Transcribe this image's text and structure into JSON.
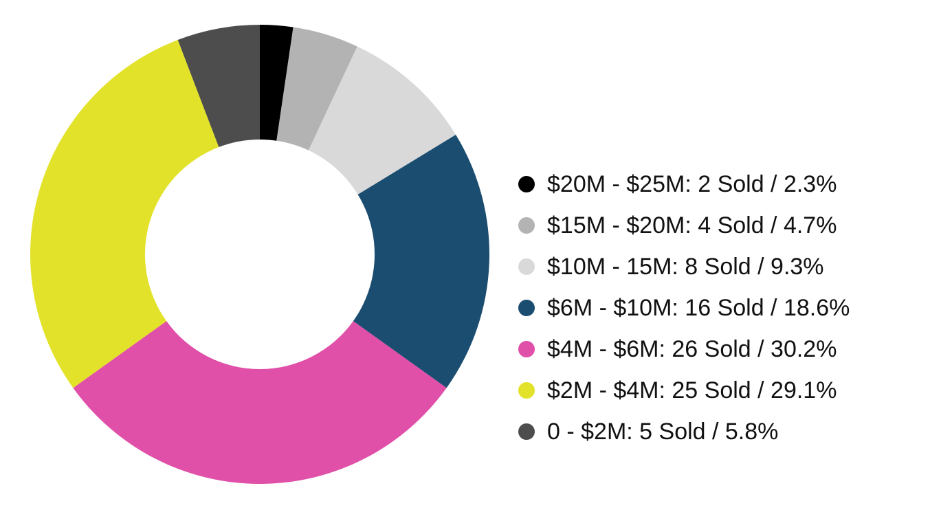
{
  "chart_data": {
    "type": "pie",
    "variant": "donut",
    "title": "",
    "slices": [
      {
        "label": "$20M - $25M: 2 Sold / 2.3%",
        "category": "$20M - $25M",
        "sold": 2,
        "percent": 2.3,
        "color": "#000000"
      },
      {
        "label": "$15M - $20M: 4 Sold / 4.7%",
        "category": "$15M - $20M",
        "sold": 4,
        "percent": 4.7,
        "color": "#b3b3b3"
      },
      {
        "label": "$10M - 15M: 8 Sold / 9.3%",
        "category": "$10M - 15M",
        "sold": 8,
        "percent": 9.3,
        "color": "#d9d9d9"
      },
      {
        "label": "$6M - $10M: 16 Sold / 18.6%",
        "category": "$6M - $10M",
        "sold": 16,
        "percent": 18.6,
        "color": "#1b4d70"
      },
      {
        "label": "$4M - $6M: 26 Sold / 30.2%",
        "category": "$4M - $6M",
        "sold": 26,
        "percent": 30.2,
        "color": "#e04fa8"
      },
      {
        "label": "$2M - $4M: 25 Sold / 29.1%",
        "category": "$2M - $4M",
        "sold": 25,
        "percent": 29.1,
        "color": "#e3e22a"
      },
      {
        "label": "0 - $2M: 5 Sold / 5.8%",
        "category": "0 - $2M",
        "sold": 5,
        "percent": 5.8,
        "color": "#4d4d4d"
      }
    ],
    "legend_position": "right"
  }
}
